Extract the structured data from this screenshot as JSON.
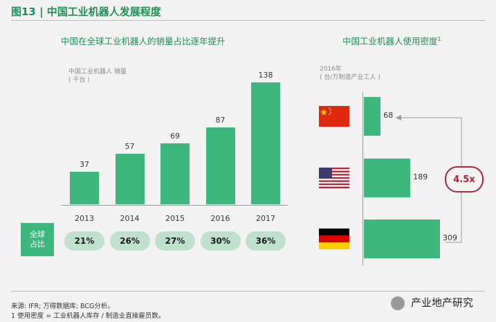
{
  "figure_title": "图13 | 中国工业机器人发展程度",
  "left_chart": {
    "title": "中国在全球工业机器人的销量占比逐年提升",
    "unit_line1": "中国工业机器人 销量",
    "unit_line2": "( 千台 )",
    "share_label": "全球\n占比",
    "chart_data": {
      "type": "bar",
      "categories": [
        "2013",
        "2014",
        "2015",
        "2016",
        "2017"
      ],
      "values": [
        37,
        57,
        69,
        87,
        138
      ],
      "global_share": [
        "21%",
        "26%",
        "27%",
        "30%",
        "36%"
      ],
      "title": "中国在全球工业机器人的销量占比逐年提升",
      "ylabel": "中国工业机器人 销量 ( 千台 )",
      "ylim": [
        0,
        138
      ]
    }
  },
  "right_chart": {
    "title": "中国工业机器人使用密度",
    "title_sup": "1",
    "unit_line1": "2016年",
    "unit_line2": "( 台/万制造产业工人 )",
    "multiplier_label": "4.5x",
    "chart_data": {
      "type": "bar",
      "orientation": "horizontal",
      "categories": [
        "China",
        "USA",
        "Germany"
      ],
      "category_icons": [
        "flag-china",
        "flag-usa",
        "flag-germany"
      ],
      "values": [
        68,
        189,
        309
      ],
      "title": "中国工业机器人使用密度",
      "xlim": [
        0,
        309
      ]
    }
  },
  "notes": {
    "source": "来源: IFR; 万得数据库; BCG分析。",
    "footnote": "1 使用密度 = 工业机器人库存 / 制造业直接雇员数。"
  },
  "watermark": {
    "text": "产业地产研究"
  },
  "colors": {
    "accent": "#1f8f55",
    "bar": "#3db77d",
    "pill": "#bfe0cc",
    "callout": "#b0243b"
  }
}
